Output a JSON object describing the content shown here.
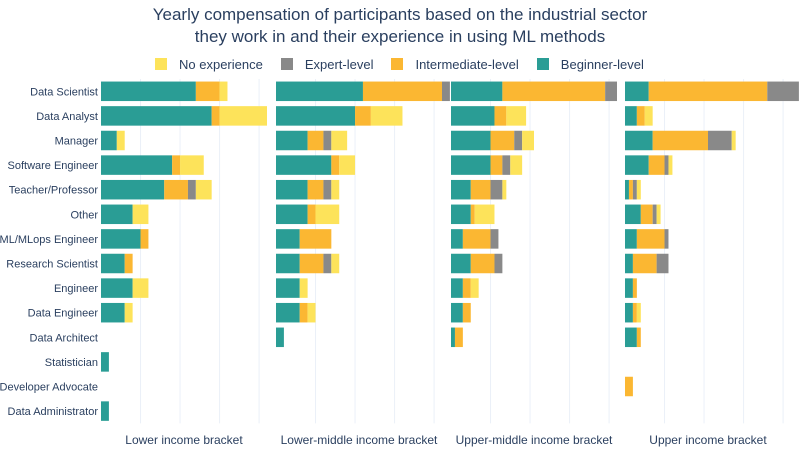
{
  "chart_data": {
    "type": "bar",
    "orientation": "horizontal",
    "barmode": "stack",
    "title_lines": [
      "Yearly compensation of participants based on the industrial sector",
      "they work in and their experience in using ML methods"
    ],
    "legend": {
      "placement": "top-center",
      "order": [
        "No experience",
        "Expert-level",
        "Intermediate-level",
        "Beginner-level"
      ]
    },
    "colors": {
      "Beginner-level": "#2a9d95",
      "Intermediate-level": "#fbb732",
      "Expert-level": "#898989",
      "No experience": "#fde35a"
    },
    "stack_order": [
      "Beginner-level",
      "Intermediate-level",
      "Expert-level",
      "No experience"
    ],
    "categories": [
      "Data Scientist",
      "Data Analyst",
      "Manager",
      "Software Engineer",
      "Teacher/Professor",
      "Other",
      "ML/MLops Engineer",
      "Research Scientist",
      "Engineer",
      "Data Engineer",
      "Data Architect",
      "Statistician",
      "Developer Advocate",
      "Data Administrator"
    ],
    "grid": true,
    "xlim": [
      0,
      21
    ],
    "panels": [
      {
        "label": "Lower income bracket",
        "series": [
          {
            "name": "Beginner-level",
            "values": [
              12,
              14,
              2,
              9,
              8,
              4,
              5,
              3,
              4,
              3,
              0,
              1,
              0,
              1
            ]
          },
          {
            "name": "Intermediate-level",
            "values": [
              3,
              1,
              0,
              1,
              3,
              0,
              1,
              1,
              0,
              0,
              0,
              0,
              0,
              0
            ]
          },
          {
            "name": "Expert-level",
            "values": [
              0,
              0,
              0,
              0,
              1,
              0,
              0,
              0,
              0,
              0,
              0,
              0,
              0,
              0
            ]
          },
          {
            "name": "No experience",
            "values": [
              1,
              6,
              1,
              3,
              2,
              2,
              0,
              0,
              2,
              1,
              0,
              0,
              0,
              0
            ]
          }
        ]
      },
      {
        "label": "Lower-middle income bracket",
        "series": [
          {
            "name": "Beginner-level",
            "values": [
              11,
              10,
              4,
              7,
              4,
              4,
              3,
              3,
              3,
              3,
              1,
              0,
              0,
              0
            ]
          },
          {
            "name": "Intermediate-level",
            "values": [
              10,
              2,
              2,
              1,
              2,
              1,
              4,
              3,
              0,
              1,
              0,
              0,
              0,
              0
            ]
          },
          {
            "name": "Expert-level",
            "values": [
              1,
              0,
              1,
              0,
              1,
              0,
              0,
              1,
              0,
              0,
              0,
              0,
              0,
              0
            ]
          },
          {
            "name": "No experience",
            "values": [
              0,
              4,
              2,
              2,
              1,
              3,
              0,
              1,
              1,
              1,
              0,
              0,
              0,
              0
            ]
          }
        ]
      },
      {
        "label": "Upper-middle income bracket",
        "series": [
          {
            "name": "Beginner-level",
            "values": [
              6.5,
              5.5,
              5,
              5,
              2.5,
              2.5,
              1.5,
              2.5,
              1.5,
              1.5,
              0.5,
              0,
              0,
              0
            ]
          },
          {
            "name": "Intermediate-level",
            "values": [
              13,
              1.5,
              3,
              1.5,
              2.5,
              0.5,
              3.5,
              3,
              1,
              1,
              1,
              0,
              0,
              0
            ]
          },
          {
            "name": "Expert-level",
            "values": [
              1.5,
              0,
              1,
              1,
              1.5,
              0,
              1,
              1,
              0,
              0,
              0,
              0,
              0,
              0
            ]
          },
          {
            "name": "No experience",
            "values": [
              0,
              2.5,
              1.5,
              1.5,
              0.5,
              2.5,
              0,
              0,
              1,
              0,
              0,
              0,
              0,
              0
            ]
          }
        ]
      },
      {
        "label": "Upper income bracket",
        "series": [
          {
            "name": "Beginner-level",
            "values": [
              3,
              1.5,
              3.5,
              3,
              0.5,
              2,
              1.5,
              1,
              1,
              1,
              1.5,
              0,
              0,
              0
            ]
          },
          {
            "name": "Intermediate-level",
            "values": [
              15,
              1,
              7,
              2,
              0.5,
              1.5,
              3.5,
              3,
              0.5,
              0.5,
              0.5,
              0,
              1,
              0
            ]
          },
          {
            "name": "Expert-level",
            "values": [
              4,
              0,
              3,
              0.5,
              0.5,
              0.5,
              0.5,
              1.5,
              0,
              0,
              0,
              0,
              0,
              0
            ]
          },
          {
            "name": "No experience",
            "values": [
              0,
              1,
              0.5,
              0.5,
              0.5,
              0.5,
              0,
              0,
              0,
              0.5,
              0,
              0,
              0,
              0
            ]
          }
        ]
      }
    ]
  }
}
